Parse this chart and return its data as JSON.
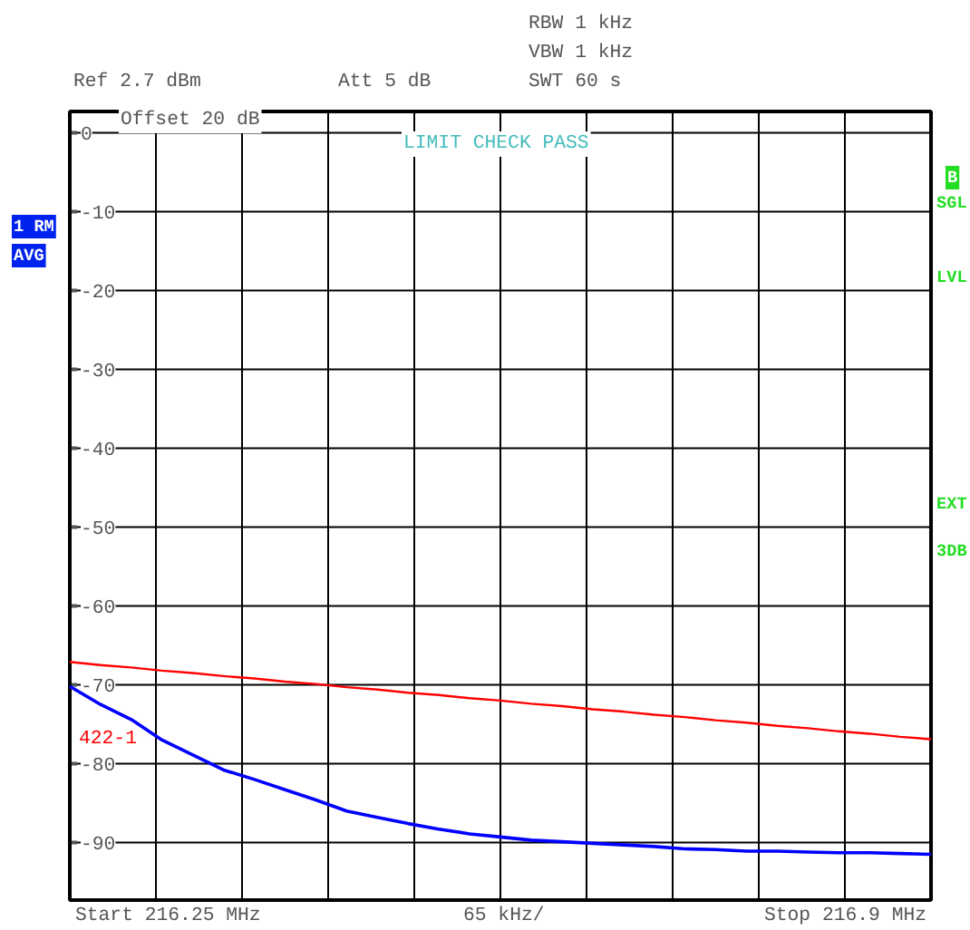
{
  "chart_data": {
    "type": "line",
    "annotations": [
      "RBW 1 kHz",
      "VBW 1 kHz",
      "SWT 60 s",
      "Ref 2.7 dBm",
      "Att 5 dB",
      "Offset 20 dB",
      "LIMIT CHECK PASS",
      "1 RM",
      "AVG",
      "B",
      "SGL",
      "LVL",
      "EXT",
      "3DB",
      "Start 216.25 MHz",
      "65 kHz/",
      "Stop 216.9 MHz"
    ],
    "categories": [
      null,
      null,
      null,
      null,
      null,
      null,
      null,
      null,
      null,
      null,
      null,
      null,
      null,
      null,
      null,
      null,
      null,
      null,
      null,
      null,
      null,
      null,
      null,
      null,
      null,
      null,
      null,
      null,
      null
    ],
    "ylim": [
      -97.3,
      2.7
    ],
    "yticks": [
      0,
      -10,
      -20,
      -30,
      -40,
      -50,
      -60,
      -70,
      -80,
      -90
    ],
    "grid": true,
    "marker": "none",
    "line_style": "solid",
    "series": [
      {
        "name": "422-1",
        "color": "#ff0000",
        "values": [
          -67.1,
          -67.5,
          -67.8,
          -68.2,
          -68.5,
          -68.9,
          -69.2,
          -69.6,
          -69.9,
          -70.3,
          -70.6,
          -71.0,
          -71.3,
          -71.7,
          -72.0,
          -72.4,
          -72.7,
          -73.1,
          -73.4,
          -73.8,
          -74.1,
          -74.5,
          -74.8,
          -75.2,
          -75.5,
          -75.9,
          -76.2,
          -76.6,
          -76.9
        ]
      },
      {
        "color": "#0000ff",
        "values": [
          -70.2,
          -72.5,
          -74.4,
          -77.0,
          -78.9,
          -80.8,
          -82.0,
          -83.3,
          -84.6,
          -86.0,
          -86.8,
          -87.6,
          -88.3,
          -88.9,
          -89.3,
          -89.7,
          -89.9,
          -90.1,
          -90.3,
          -90.5,
          -90.8,
          -90.9,
          -91.1,
          -91.1,
          -91.2,
          -91.3,
          -91.3,
          -91.4,
          -91.5
        ]
      }
    ]
  }
}
